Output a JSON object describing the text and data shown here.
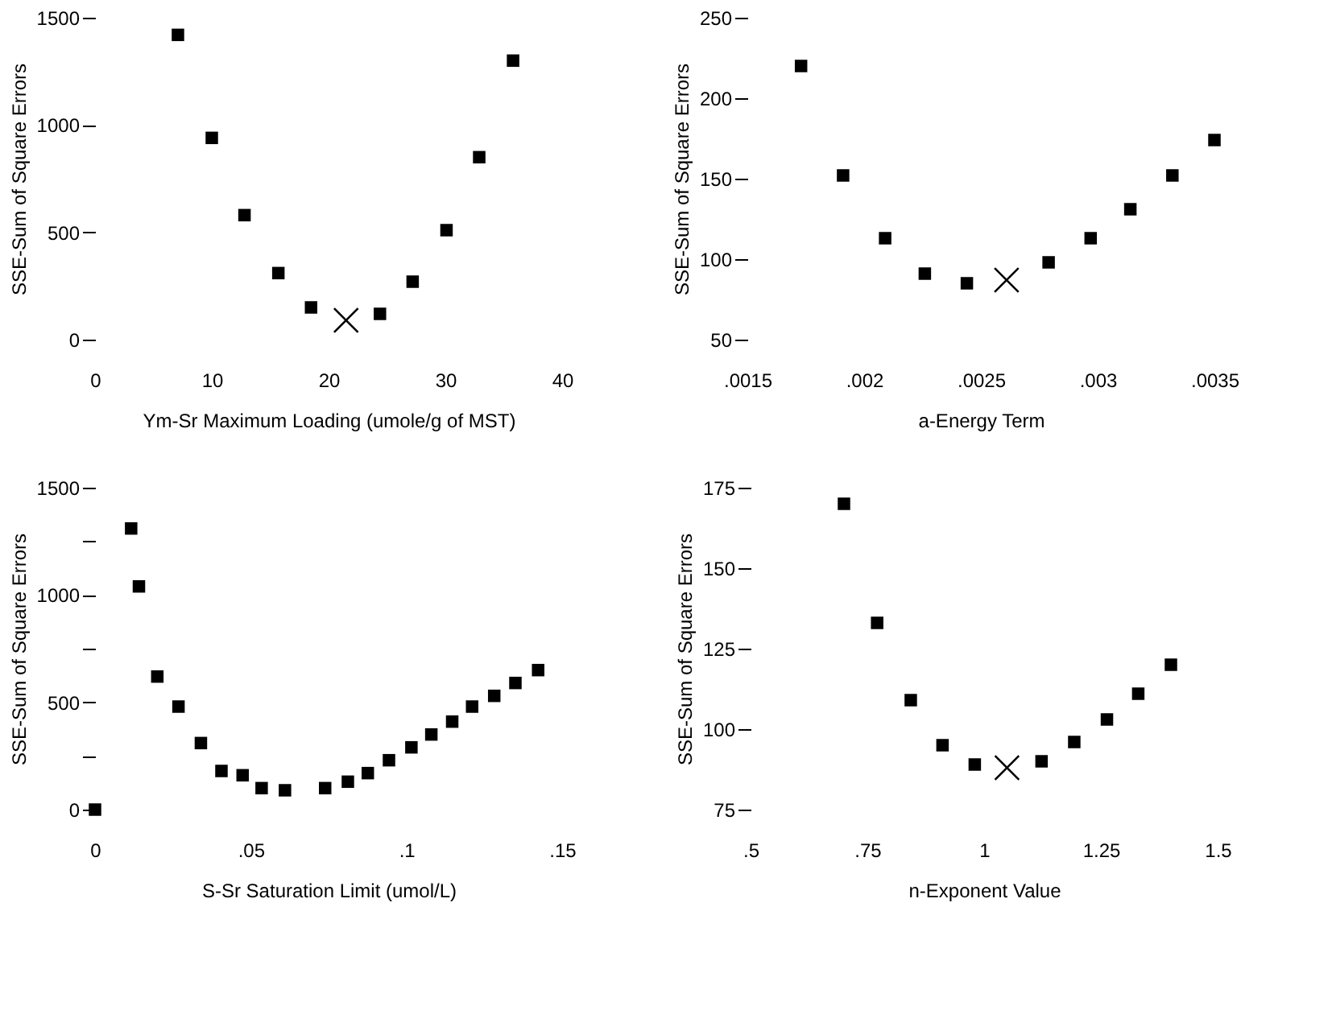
{
  "chart_data": [
    {
      "type": "scatter",
      "xlabel": "Ym-Sr Maximum Loading (umole/g of MST)",
      "ylabel": "SSE-Sum of Square Errors",
      "xlim": [
        0,
        40
      ],
      "ylim": [
        0,
        1500
      ],
      "xticks": [
        0,
        10,
        20,
        30,
        40
      ],
      "yticks": [
        0,
        500,
        1000,
        1500
      ],
      "grid": false,
      "series": [
        {
          "color": "#000000",
          "marker": "square",
          "x": [
            7.1,
            10.0,
            12.8,
            15.7,
            18.5,
            24.4,
            27.2,
            30.1,
            32.9,
            35.8
          ],
          "values": [
            1420,
            940,
            580,
            310,
            150,
            120,
            270,
            510,
            850,
            1300
          ]
        },
        {
          "color": "#000000",
          "marker": "cross",
          "x": [
            21.5
          ],
          "values": [
            90
          ]
        }
      ]
    },
    {
      "type": "scatter",
      "xlabel": "a-Energy Term",
      "ylabel": "SSE-Sum of Square Errors",
      "xlim": [
        0.0015,
        0.0035
      ],
      "ylim": [
        50,
        250
      ],
      "xticks": [
        {
          "value": 0.0015,
          "label": ".0015"
        },
        {
          "value": 0.002,
          "label": ".002"
        },
        {
          "value": 0.0025,
          "label": ".0025"
        },
        {
          "value": 0.003,
          "label": ".003"
        },
        {
          "value": 0.0035,
          "label": ".0035"
        }
      ],
      "yticks": [
        50,
        100,
        150,
        200,
        250
      ],
      "grid": false,
      "series": [
        {
          "color": "#000000",
          "marker": "square",
          "x": [
            0.00173,
            0.00191,
            0.00209,
            0.00226,
            0.00244,
            0.00279,
            0.00297,
            0.00314,
            0.00332,
            0.0035
          ],
          "values": [
            220,
            152,
            113,
            91,
            85,
            98,
            113,
            131,
            152,
            174
          ]
        },
        {
          "color": "#000000",
          "marker": "cross",
          "x": [
            0.00261
          ],
          "values": [
            87
          ]
        }
      ]
    },
    {
      "type": "scatter",
      "xlabel": "S-Sr Saturation Limit (umol/L)",
      "ylabel": "SSE-Sum of Square Errors",
      "xlim": [
        0,
        0.15
      ],
      "ylim": [
        0,
        1500
      ],
      "xticks": [
        0,
        {
          "value": 0.05,
          "label": ".05"
        },
        {
          "value": 0.1,
          "label": ".1"
        },
        {
          "value": 0.15,
          "label": ".15"
        }
      ],
      "yticks": [
        0,
        {
          "value": 250,
          "label": null
        },
        500,
        {
          "value": 750,
          "label": null
        },
        1000,
        {
          "value": 1250,
          "label": null
        },
        1500
      ],
      "grid": false,
      "series": [
        {
          "color": "#000000",
          "marker": "square",
          "x": [
            0,
            0.0116,
            0.0141,
            0.02,
            0.0268,
            0.034,
            0.0406,
            0.0474,
            0.0535,
            0.061,
            0.0739,
            0.0812,
            0.0876,
            0.0944,
            0.1016,
            0.108,
            0.1147,
            0.1211,
            0.1282,
            0.135,
            0.1423
          ],
          "values": [
            0,
            1310,
            1040,
            620,
            480,
            310,
            180,
            160,
            100,
            90,
            100,
            130,
            170,
            230,
            290,
            350,
            410,
            480,
            530,
            590,
            650
          ]
        }
      ]
    },
    {
      "type": "scatter",
      "xlabel": "n-Exponent Value",
      "ylabel": "SSE-Sum of Square Errors",
      "xlim": [
        0.5,
        1.5
      ],
      "ylim": [
        75,
        175
      ],
      "xticks": [
        {
          "value": 0.5,
          "label": ".5"
        },
        {
          "value": 0.75,
          "label": ".75"
        },
        1,
        1.25,
        1.5
      ],
      "yticks": [
        75,
        100,
        125,
        150,
        175
      ],
      "grid": false,
      "series": [
        {
          "color": "#000000",
          "marker": "square",
          "x": [
            0.7,
            0.771,
            0.843,
            0.911,
            0.98,
            1.123,
            1.193,
            1.263,
            1.33,
            1.4
          ],
          "values": [
            170,
            133,
            109,
            95,
            89,
            90,
            96,
            103,
            111,
            120
          ]
        },
        {
          "color": "#000000",
          "marker": "cross",
          "x": [
            1.049
          ],
          "values": [
            88
          ]
        }
      ]
    }
  ]
}
